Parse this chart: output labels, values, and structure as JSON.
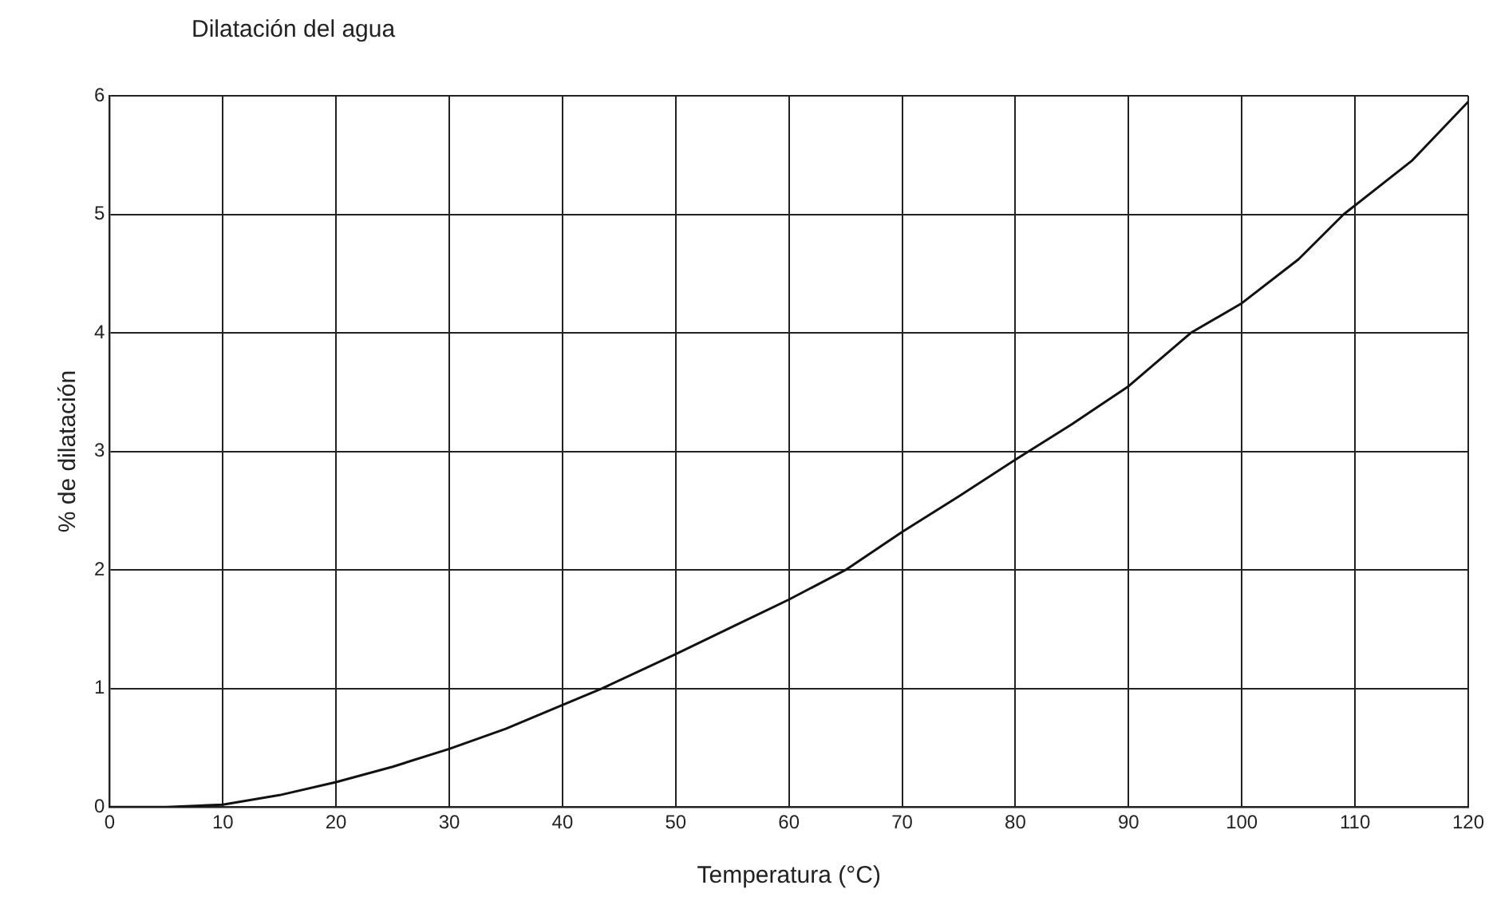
{
  "chart_data": {
    "type": "line",
    "title": "Dilatación del agua",
    "xlabel": "Temperatura (°C)",
    "ylabel": "% de dilatación",
    "x": [
      0,
      5,
      10,
      15,
      20,
      25,
      30,
      35,
      40,
      43.5,
      50,
      55,
      60,
      65,
      70,
      75,
      80,
      85,
      90,
      95.5,
      100,
      105,
      109,
      115,
      120
    ],
    "series": [
      {
        "color": "#111111",
        "values": [
          0,
          0,
          0.02,
          0.1,
          0.21,
          0.34,
          0.49,
          0.66,
          0.86,
          1.0,
          1.29,
          1.52,
          1.75,
          2.0,
          2.32,
          2.62,
          2.93,
          3.23,
          3.55,
          4.0,
          4.25,
          4.62,
          5.0,
          5.45,
          5.95
        ]
      }
    ],
    "xlim": [
      0,
      120
    ],
    "xticks": [
      0,
      10,
      20,
      30,
      40,
      50,
      60,
      70,
      80,
      90,
      100,
      110,
      120
    ],
    "ylim": [
      0,
      6
    ],
    "yticks": [
      0,
      1,
      2,
      3,
      4,
      5,
      6
    ],
    "grid": true,
    "legend": false,
    "marker": "none",
    "line_style": "solid"
  }
}
